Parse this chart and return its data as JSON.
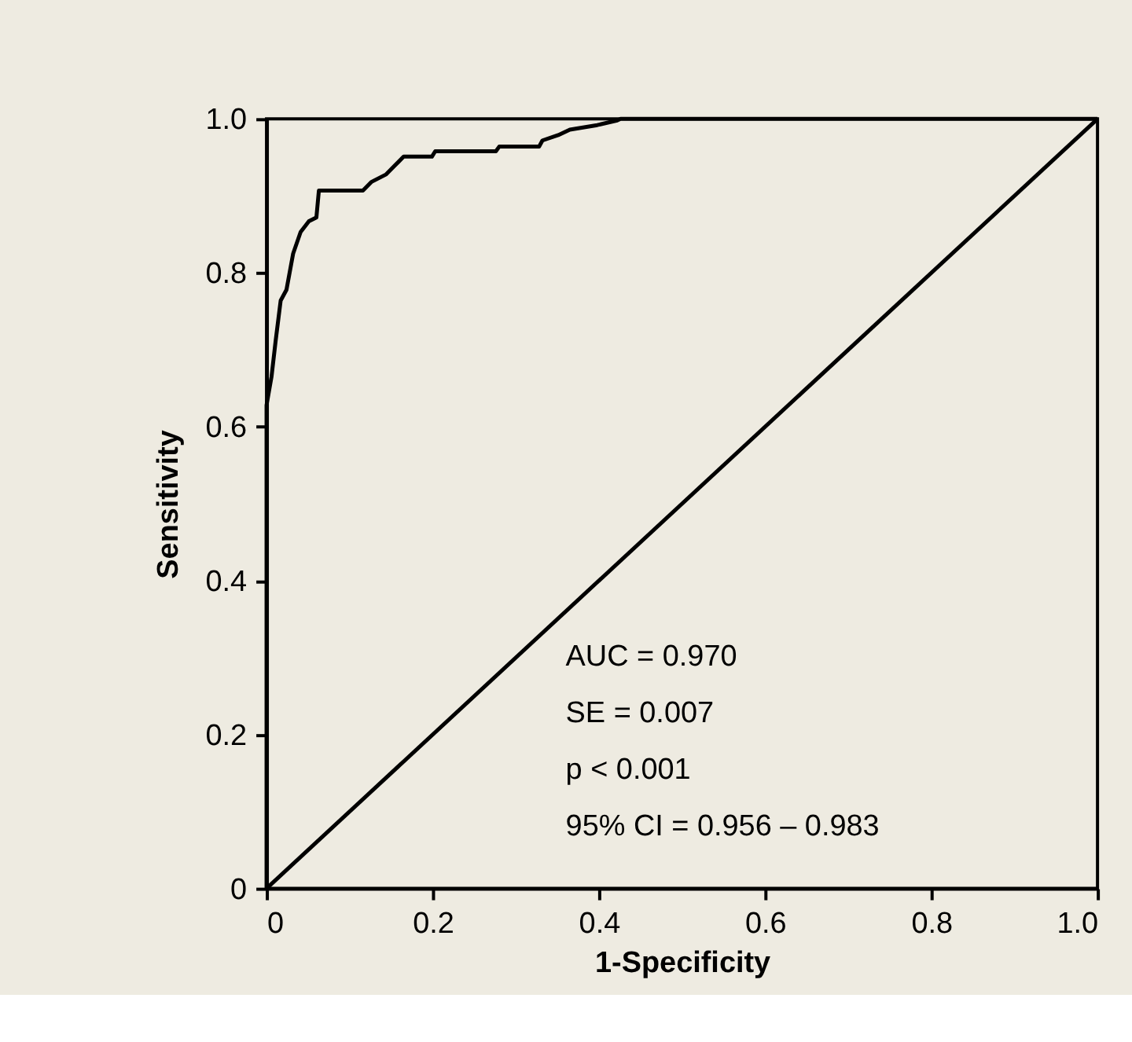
{
  "chart_data": {
    "type": "line",
    "xlabel": "1-Specificity",
    "ylabel": "Sensitivity",
    "xlim": [
      0,
      1
    ],
    "ylim": [
      0,
      1
    ],
    "xticks": [
      {
        "value": 0,
        "label": "0"
      },
      0.2,
      0.4,
      0.6,
      0.8,
      {
        "value": 1,
        "label": "1.0"
      }
    ],
    "yticks": [
      {
        "value": 0,
        "label": "0"
      },
      0.2,
      0.4,
      0.6,
      0.8,
      {
        "value": 1,
        "label": "1.0"
      }
    ],
    "grid": false,
    "marker": "none",
    "line_style": "solid",
    "series": [
      {
        "color": "#000000",
        "x": [
          0,
          0,
          0.006,
          0.011,
          0.017,
          0.024,
          0.032,
          0.041,
          0.051,
          0.06,
          0.063,
          0.116,
          0.126,
          0.144,
          0.154,
          0.165,
          0.199,
          0.203,
          0.276,
          0.28,
          0.328,
          0.332,
          0.351,
          0.365,
          0.398,
          0.422,
          0.426,
          1
        ],
        "values": [
          0,
          0.628,
          0.665,
          0.712,
          0.764,
          0.778,
          0.825,
          0.853,
          0.867,
          0.872,
          0.907,
          0.907,
          0.918,
          0.928,
          0.939,
          0.951,
          0.951,
          0.958,
          0.958,
          0.964,
          0.964,
          0.972,
          0.979,
          0.986,
          0.992,
          0.998,
          1,
          1
        ]
      },
      {
        "color": "#000000",
        "x": [
          0,
          1
        ],
        "values": [
          0,
          1
        ]
      }
    ],
    "annotations": [
      "AUC  = 0.970",
      "SE = 0.007",
      "p < 0.001",
      "95% CI = 0.956 – 0.983"
    ]
  }
}
